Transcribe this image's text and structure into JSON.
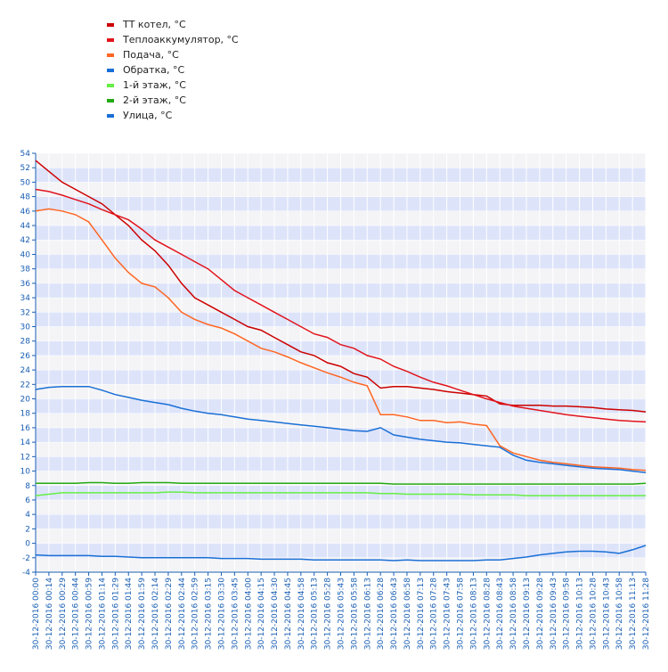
{
  "chart_data": {
    "type": "line",
    "categories": [
      "30-12-2016 00:00",
      "30-12-2016 00:14",
      "30-12-2016 00:29",
      "30-12-2016 00:44",
      "30-12-2016 00:59",
      "30-12-2016 01:14",
      "30-12-2016 01:29",
      "30-12-2016 01:44",
      "30-12-2016 01:59",
      "30-12-2016 02:14",
      "30-12-2016 02:29",
      "30-12-2016 02:44",
      "30-12-2016 02:59",
      "30-12-2016 03:15",
      "30-12-2016 03:30",
      "30-12-2016 03:45",
      "30-12-2016 04:00",
      "30-12-2016 04:15",
      "30-12-2016 04:30",
      "30-12-2016 04:45",
      "30-12-2016 04:58",
      "30-12-2016 05:13",
      "30-12-2016 05:28",
      "30-12-2016 05:43",
      "30-12-2016 05:58",
      "30-12-2016 06:13",
      "30-12-2016 06:28",
      "30-12-2016 06:43",
      "30-12-2016 06:58",
      "30-12-2016 07:13",
      "30-12-2016 07:28",
      "30-12-2016 07:43",
      "30-12-2016 07:58",
      "30-12-2016 08:13",
      "30-12-2016 08:28",
      "30-12-2016 08:43",
      "30-12-2016 08:58",
      "30-12-2016 09:13",
      "30-12-2016 09:28",
      "30-12-2016 09:43",
      "30-12-2016 09:58",
      "30-12-2016 10:13",
      "30-12-2016 10:28",
      "30-12-2016 10:43",
      "30-12-2016 10:58",
      "30-12-2016 11:13",
      "30-12-2016 11:28"
    ],
    "series": [
      {
        "name": "ТТ котел, °C",
        "color": "#cc0000",
        "values": [
          53,
          51.5,
          50,
          49,
          48,
          47,
          45.5,
          44,
          42,
          40.5,
          38.5,
          36,
          34,
          33,
          32,
          31,
          30,
          29.5,
          28.5,
          27.5,
          26.5,
          26,
          25,
          24.5,
          23.5,
          23,
          21.5,
          21.7,
          21.7,
          21.5,
          21.3,
          21,
          20.8,
          20.6,
          20.4,
          19.3,
          19.1,
          19.1,
          19.1,
          19,
          19,
          18.9,
          18.8,
          18.6,
          18.5,
          18.4,
          18.2
        ]
      },
      {
        "name": "Теплоаккумулятор, °C",
        "color": "#e2141c",
        "values": [
          49,
          48.7,
          48.2,
          47.6,
          47,
          46.2,
          45.5,
          44.8,
          43.5,
          42,
          41,
          40,
          39,
          38,
          36.5,
          35,
          34,
          33,
          32,
          31,
          30,
          29,
          28.5,
          27.5,
          27,
          26,
          25.5,
          24.5,
          23.8,
          23,
          22.3,
          21.8,
          21.2,
          20.6,
          20,
          19.5,
          19,
          18.7,
          18.4,
          18.1,
          17.8,
          17.6,
          17.4,
          17.2,
          17,
          16.9,
          16.8
        ]
      },
      {
        "name": "Подача, °C",
        "color": "#ff6622",
        "values": [
          46,
          46.3,
          46,
          45.5,
          44.5,
          42,
          39.5,
          37.5,
          36,
          35.5,
          34,
          32,
          31,
          30.3,
          29.8,
          29,
          28,
          27,
          26.5,
          25.8,
          25,
          24.3,
          23.6,
          23,
          22.3,
          21.8,
          17.8,
          17.8,
          17.5,
          17,
          17,
          16.7,
          16.8,
          16.5,
          16.3,
          13.5,
          12.5,
          12,
          11.5,
          11.2,
          11,
          10.8,
          10.6,
          10.5,
          10.4,
          10.2,
          10.1
        ]
      },
      {
        "name": "Обратка, °C",
        "color": "#1a6fd6",
        "values": [
          21.3,
          21.6,
          21.7,
          21.7,
          21.7,
          21.2,
          20.6,
          20.2,
          19.8,
          19.5,
          19.2,
          18.7,
          18.3,
          18,
          17.8,
          17.5,
          17.2,
          17,
          16.8,
          16.6,
          16.4,
          16.2,
          16,
          15.8,
          15.6,
          15.5,
          16,
          15,
          14.7,
          14.4,
          14.2,
          14,
          13.9,
          13.7,
          13.5,
          13.3,
          12.2,
          11.5,
          11.2,
          11,
          10.8,
          10.6,
          10.4,
          10.3,
          10.2,
          10,
          9.8
        ]
      },
      {
        "name": "1-й этаж, °C",
        "color": "#66ee44",
        "values": [
          6.6,
          6.8,
          7,
          7,
          7,
          7,
          7,
          7,
          7,
          7,
          7.1,
          7.1,
          7,
          7,
          7,
          7,
          7,
          7,
          7,
          7,
          7,
          7,
          7,
          7,
          7,
          7,
          6.9,
          6.9,
          6.8,
          6.8,
          6.8,
          6.8,
          6.8,
          6.7,
          6.7,
          6.7,
          6.7,
          6.6,
          6.6,
          6.6,
          6.6,
          6.6,
          6.6,
          6.6,
          6.6,
          6.6,
          6.6
        ]
      },
      {
        "name": "2-й этаж, °C",
        "color": "#22aa11",
        "values": [
          8.3,
          8.3,
          8.3,
          8.3,
          8.4,
          8.4,
          8.3,
          8.3,
          8.4,
          8.4,
          8.4,
          8.3,
          8.3,
          8.3,
          8.3,
          8.3,
          8.3,
          8.3,
          8.3,
          8.3,
          8.3,
          8.3,
          8.3,
          8.3,
          8.3,
          8.3,
          8.3,
          8.2,
          8.2,
          8.2,
          8.2,
          8.2,
          8.2,
          8.2,
          8.2,
          8.2,
          8.2,
          8.2,
          8.2,
          8.2,
          8.2,
          8.2,
          8.2,
          8.2,
          8.2,
          8.2,
          8.3
        ]
      },
      {
        "name": "Улица, °C",
        "color": "#1a6fd6",
        "values": [
          -1.6,
          -1.7,
          -1.7,
          -1.7,
          -1.7,
          -1.8,
          -1.8,
          -1.9,
          -2,
          -2,
          -2,
          -2,
          -2,
          -2,
          -2.1,
          -2.1,
          -2.1,
          -2.2,
          -2.2,
          -2.2,
          -2.2,
          -2.3,
          -2.3,
          -2.3,
          -2.3,
          -2.3,
          -2.3,
          -2.4,
          -2.3,
          -2.4,
          -2.4,
          -2.4,
          -2.4,
          -2.4,
          -2.3,
          -2.3,
          -2.1,
          -1.9,
          -1.6,
          -1.4,
          -1.2,
          -1.1,
          -1.1,
          -1.2,
          -1.4,
          -0.9,
          -0.3
        ]
      }
    ],
    "ylim": [
      -4,
      54
    ],
    "yticks": [
      -4,
      -2,
      0,
      2,
      4,
      6,
      8,
      10,
      12,
      14,
      16,
      18,
      20,
      22,
      24,
      26,
      28,
      30,
      32,
      34,
      36,
      38,
      40,
      42,
      44,
      46,
      48,
      50,
      52,
      54
    ],
    "grid": true
  }
}
